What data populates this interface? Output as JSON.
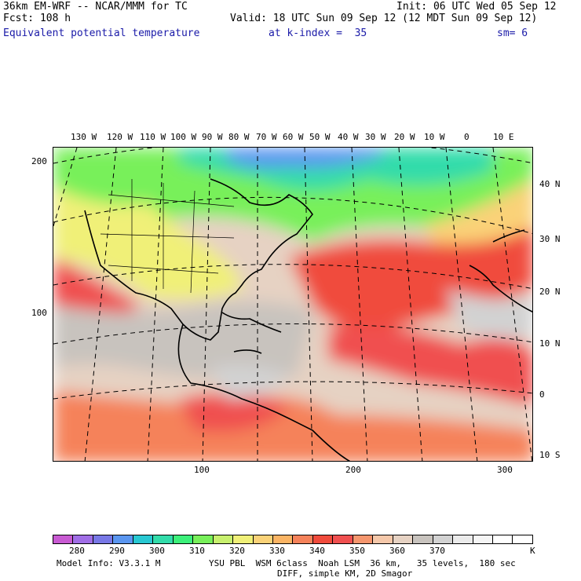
{
  "header": {
    "line1_left": "36km EM-WRF -- NCAR/MMM for TC",
    "line1_right": "Init: 06 UTC Wed 05 Sep 12",
    "line2_left": "Fcst: 108 h",
    "line2_right": "Valid: 18 UTC Sun 09 Sep 12 (12 MDT Sun 09 Sep 12)",
    "line3_field": "Equivalent potential temperature",
    "line3_level": "at k-index =  35",
    "line3_sm": "sm= 6"
  },
  "map": {
    "lon_labels": [
      "130 W",
      "120 W",
      "110 W",
      "100 W",
      "90 W",
      "80 W",
      "70 W",
      "60 W",
      "50 W",
      "40 W",
      "30 W",
      "20 W",
      "10 W",
      "0",
      "10 E"
    ],
    "lat_labels": [
      "40 N",
      "30 N",
      "20 N",
      "10 N",
      "0",
      "10 S"
    ],
    "left_ticks": [
      "200",
      "100"
    ],
    "bottom_ticks": [
      "100",
      "200",
      "300"
    ]
  },
  "colorbar": {
    "colors": [
      "#c85ad2",
      "#a06ee6",
      "#7878e6",
      "#5a96f0",
      "#28c8d2",
      "#32dcaa",
      "#3cf07a",
      "#78f05a",
      "#c8f06e",
      "#f0f078",
      "#fad278",
      "#fab464",
      "#f5825a",
      "#f04b3c",
      "#f05050",
      "#f5966e",
      "#f5c8aa",
      "#e6d2c3",
      "#c8c3be",
      "#d2d2d2",
      "#ebebeb",
      "#f5f5f5",
      "#ffffff",
      "#ffffff"
    ],
    "labels": [
      "280",
      "290",
      "300",
      "310",
      "320",
      "330",
      "340",
      "350",
      "360",
      "370"
    ],
    "unit": "K"
  },
  "footer": {
    "line1_left": "Model Info: V3.3.1 M",
    "line1_right": "YSU PBL  WSM 6class  Noah LSM  36 km,   35 levels,  180 sec",
    "line2": "DIFF, simple KM, 2D Smagor"
  }
}
